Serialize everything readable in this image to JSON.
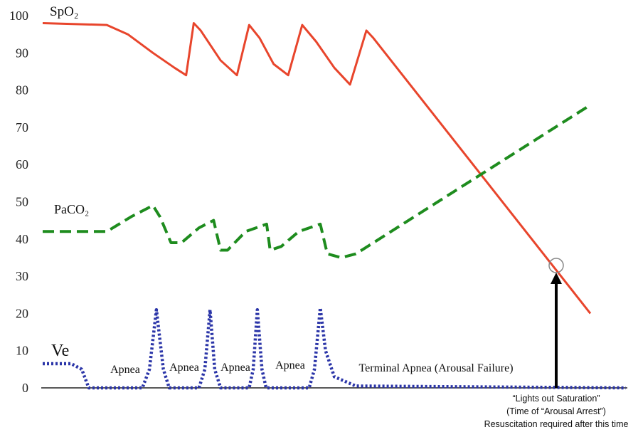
{
  "chart_data": {
    "type": "line",
    "ylim": [
      0,
      100
    ],
    "yticks": [
      0,
      10,
      20,
      30,
      40,
      50,
      60,
      70,
      80,
      90,
      100
    ],
    "xlim": [
      0,
      100
    ],
    "grid": false,
    "series": [
      {
        "name": "SpO₂",
        "color": "#e8452c",
        "style": "solid",
        "x": [
          0,
          11,
          14.6,
          18.9,
          22.6,
          24.6,
          25.9,
          27.1,
          30.5,
          33.3,
          35.4,
          37.2,
          39.6,
          42.1,
          44.5,
          46.9,
          50,
          52.7,
          55.5,
          56.7,
          93.9
        ],
        "values": [
          98,
          97.5,
          95,
          90,
          86,
          84,
          98,
          96,
          88,
          84,
          97.5,
          94,
          87,
          84,
          97.5,
          93,
          86,
          81.5,
          96,
          94,
          20
        ]
      },
      {
        "name": "PaCO₂",
        "color": "#1e8c1e",
        "style": "dashed",
        "x": [
          0,
          11,
          15.2,
          18.9,
          20.1,
          22,
          23.8,
          26.8,
          29.3,
          30.5,
          31.7,
          34.8,
          38.4,
          39,
          40.9,
          43.9,
          47.6,
          48.8,
          51.2,
          53.7,
          93.9
        ],
        "values": [
          42,
          42,
          46,
          49,
          46,
          39,
          39,
          43,
          45,
          37,
          37,
          42,
          44,
          37,
          38,
          42,
          44,
          36,
          35,
          36,
          76
        ]
      },
      {
        "name": "Ve",
        "color": "#2b35a8",
        "style": "dotted",
        "x": [
          0,
          4.9,
          6.7,
          7.9,
          17.1,
          18.3,
          19.5,
          20.7,
          21.7,
          26.8,
          27.8,
          28.7,
          29.5,
          30.5,
          35.4,
          36.1,
          36.8,
          37.6,
          38.3,
          45.7,
          46.6,
          47.6,
          48.5,
          50,
          53.7,
          100
        ],
        "values": [
          6.5,
          6.5,
          5,
          0,
          0,
          5,
          21,
          5,
          0,
          0,
          5,
          21,
          5,
          0,
          0,
          5,
          21,
          5,
          0,
          0,
          5,
          21.5,
          10,
          3,
          0.5,
          0
        ]
      }
    ],
    "annotations": [
      "Apnea",
      "Apnea",
      "Apnea",
      "Apnea",
      "Terminal Apnea (Arousal Failure)",
      "“Lights out Saturation”",
      "(Time of “Arousal Arrest”)",
      "Resuscitation required after this time"
    ]
  }
}
